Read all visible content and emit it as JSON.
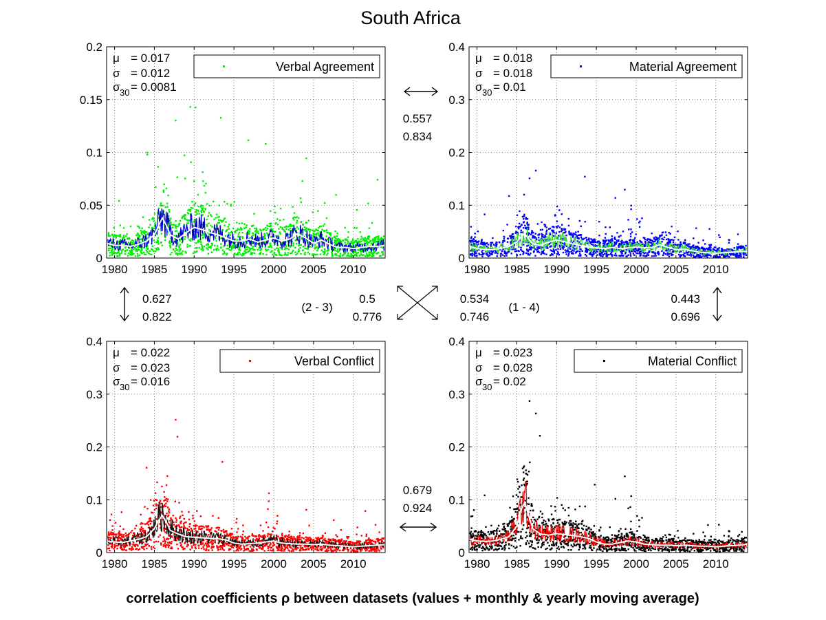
{
  "title": "South Africa",
  "footer": "correlation coefficients ρ between datasets (values + monthly & yearly moving average)",
  "xticks": [
    "1980",
    "1985",
    "1990",
    "1995",
    "2000",
    "2005",
    "2010"
  ],
  "chart_data": [
    {
      "type": "scatter",
      "legend": "Verbal Agreement",
      "color": "#00ee00",
      "line_color": "#0000cc",
      "xlim": [
        1979,
        2014
      ],
      "ylim": [
        0,
        0.2
      ],
      "yticks": [
        "0",
        "0.05",
        "0.1",
        "0.15",
        "0.2"
      ],
      "stats": {
        "mu": "0.017",
        "sigma": "0.012",
        "sigma30": "0.0081"
      },
      "series": [
        {
          "name": "Verbal Agreement",
          "x": [
            1979.0,
            1980.0,
            1981.0,
            1982.0,
            1983.0,
            1984.0,
            1985.0,
            1985.5,
            1986.0,
            1986.5,
            1987.0,
            1988.0,
            1989.0,
            1990.0,
            1991.0,
            1992.0,
            1993.0,
            1994.0,
            1995.0,
            1996.0,
            1997.0,
            1998.0,
            1999.0,
            2000.0,
            2001.0,
            2002.0,
            2003.0,
            2004.0,
            2005.0,
            2006.0,
            2007.0,
            2008.0,
            2009.0,
            2010.0,
            2011.0,
            2012.0,
            2013.0,
            2014.0
          ],
          "y": [
            0.014,
            0.012,
            0.012,
            0.011,
            0.013,
            0.016,
            0.022,
            0.03,
            0.038,
            0.031,
            0.022,
            0.018,
            0.024,
            0.029,
            0.027,
            0.024,
            0.022,
            0.019,
            0.016,
            0.016,
            0.018,
            0.015,
            0.017,
            0.019,
            0.016,
            0.018,
            0.023,
            0.019,
            0.014,
            0.017,
            0.013,
            0.01,
            0.01,
            0.009,
            0.01,
            0.011,
            0.011,
            0.012
          ]
        }
      ]
    },
    {
      "type": "scatter",
      "legend": "Material Agreement",
      "color": "#0000ff",
      "line_color": "#33dd33",
      "xlim": [
        1979,
        2014
      ],
      "ylim": [
        0,
        0.4
      ],
      "yticks": [
        "0",
        "0.1",
        "0.2",
        "0.3",
        "0.4"
      ],
      "stats": {
        "mu": "0.018",
        "sigma": "0.018",
        "sigma30": "0.01"
      },
      "series": [
        {
          "name": "Material Agreement",
          "x": [
            1979.0,
            1980.0,
            1981.0,
            1982.0,
            1983.0,
            1984.0,
            1985.0,
            1985.5,
            1986.0,
            1986.5,
            1987.0,
            1988.0,
            1989.0,
            1990.0,
            1991.0,
            1992.0,
            1993.0,
            1994.0,
            1995.0,
            1996.0,
            1997.0,
            1998.0,
            1999.0,
            2000.0,
            2001.0,
            2002.0,
            2003.0,
            2004.0,
            2005.0,
            2006.0,
            2007.0,
            2008.0,
            2009.0,
            2010.0,
            2011.0,
            2012.0,
            2013.0,
            2014.0
          ],
          "y": [
            0.022,
            0.018,
            0.016,
            0.016,
            0.018,
            0.022,
            0.03,
            0.04,
            0.046,
            0.036,
            0.027,
            0.024,
            0.03,
            0.034,
            0.031,
            0.027,
            0.024,
            0.021,
            0.019,
            0.018,
            0.02,
            0.018,
            0.019,
            0.021,
            0.019,
            0.02,
            0.025,
            0.02,
            0.016,
            0.017,
            0.014,
            0.011,
            0.01,
            0.009,
            0.01,
            0.011,
            0.012,
            0.013
          ]
        }
      ]
    },
    {
      "type": "scatter",
      "legend": "Verbal Conflict",
      "color": "#ff0000",
      "line_color": "#111111",
      "xlim": [
        1979,
        2014
      ],
      "ylim": [
        0,
        0.4
      ],
      "yticks": [
        "0",
        "0.1",
        "0.2",
        "0.3",
        "0.4"
      ],
      "stats": {
        "mu": "0.022",
        "sigma": "0.023",
        "sigma30": "0.016"
      },
      "series": [
        {
          "name": "Verbal Conflict",
          "x": [
            1979.0,
            1980.0,
            1981.0,
            1982.0,
            1983.0,
            1984.0,
            1985.0,
            1985.5,
            1986.0,
            1986.5,
            1987.0,
            1988.0,
            1989.0,
            1990.0,
            1991.0,
            1992.0,
            1993.0,
            1994.0,
            1995.0,
            1996.0,
            1997.0,
            1998.0,
            1999.0,
            2000.0,
            2001.0,
            2002.0,
            2003.0,
            2004.0,
            2005.0,
            2006.0,
            2007.0,
            2008.0,
            2009.0,
            2010.0,
            2011.0,
            2012.0,
            2013.0,
            2014.0
          ],
          "y": [
            0.022,
            0.02,
            0.019,
            0.022,
            0.025,
            0.03,
            0.045,
            0.06,
            0.07,
            0.058,
            0.042,
            0.035,
            0.03,
            0.029,
            0.028,
            0.027,
            0.026,
            0.024,
            0.018,
            0.016,
            0.017,
            0.018,
            0.02,
            0.022,
            0.018,
            0.017,
            0.016,
            0.016,
            0.015,
            0.016,
            0.014,
            0.013,
            0.012,
            0.011,
            0.012,
            0.013,
            0.014,
            0.015
          ]
        }
      ]
    },
    {
      "type": "scatter",
      "legend": "Material Conflict",
      "color": "#000000",
      "line_color": "#ee0000",
      "xlim": [
        1979,
        2014
      ],
      "ylim": [
        0,
        0.4
      ],
      "yticks": [
        "0",
        "0.1",
        "0.2",
        "0.3",
        "0.4"
      ],
      "stats": {
        "mu": "0.023",
        "sigma": "0.028",
        "sigma30": "0.02"
      },
      "series": [
        {
          "name": "Material Conflict",
          "x": [
            1979.0,
            1980.0,
            1981.0,
            1982.0,
            1983.0,
            1984.0,
            1985.0,
            1985.5,
            1986.0,
            1986.5,
            1987.0,
            1988.0,
            1989.0,
            1990.0,
            1991.0,
            1992.0,
            1993.0,
            1994.0,
            1995.0,
            1996.0,
            1997.0,
            1998.0,
            1999.0,
            2000.0,
            2001.0,
            2002.0,
            2003.0,
            2004.0,
            2005.0,
            2006.0,
            2007.0,
            2008.0,
            2009.0,
            2010.0,
            2011.0,
            2012.0,
            2013.0,
            2014.0
          ],
          "y": [
            0.025,
            0.022,
            0.021,
            0.022,
            0.025,
            0.03,
            0.05,
            0.08,
            0.095,
            0.07,
            0.045,
            0.035,
            0.033,
            0.036,
            0.034,
            0.032,
            0.03,
            0.027,
            0.02,
            0.016,
            0.016,
            0.019,
            0.022,
            0.02,
            0.016,
            0.015,
            0.014,
            0.014,
            0.013,
            0.014,
            0.013,
            0.012,
            0.012,
            0.011,
            0.012,
            0.013,
            0.014,
            0.016
          ]
        }
      ]
    }
  ],
  "correlations": {
    "top": [
      "0.557",
      "0.834"
    ],
    "left": [
      "0.627",
      "0.822"
    ],
    "right": [
      "0.443",
      "0.696"
    ],
    "bottom": [
      "0.679",
      "0.924"
    ],
    "diag_23": {
      "label": "(2 - 3)",
      "values": [
        "0.5",
        "0.776"
      ]
    },
    "diag_14": {
      "label": "(1 - 4)",
      "values": [
        "0.534",
        "0.746"
      ]
    }
  },
  "stat_symbols": {
    "mu": "μ",
    "sigma": "σ",
    "sigma30_sub": "30"
  }
}
